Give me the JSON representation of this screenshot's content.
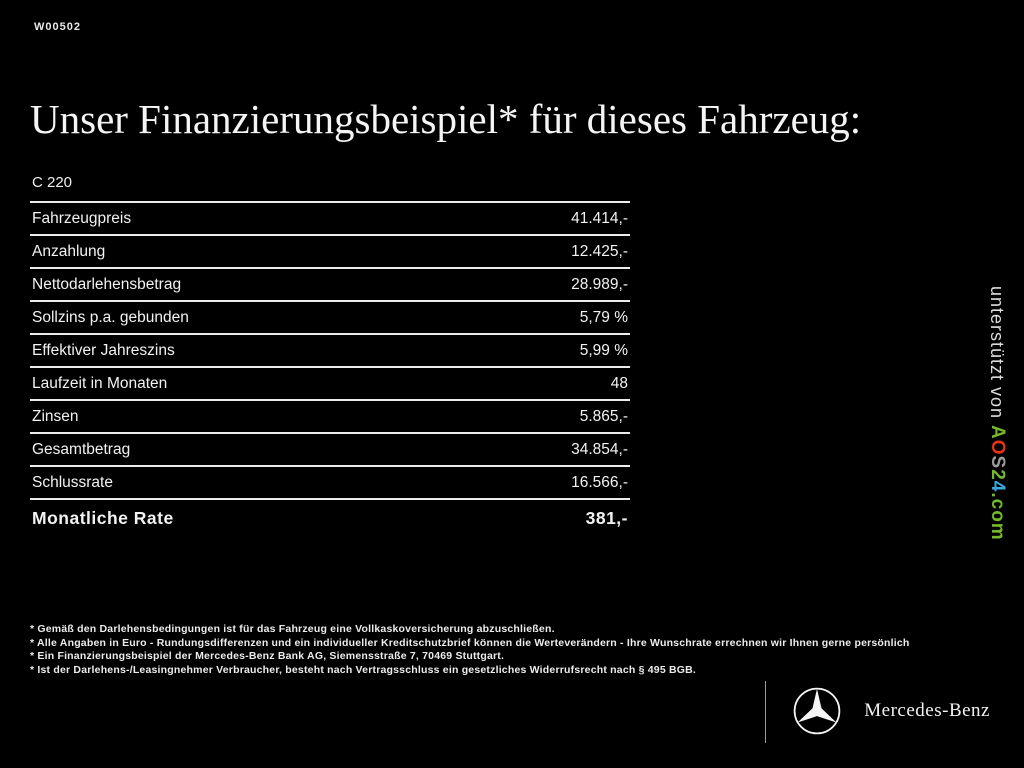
{
  "header": {
    "code": "W00502",
    "title": "Unser Finanzierungsbeispiel* für dieses Fahrzeug:"
  },
  "finance_table": {
    "model": "C 220",
    "rows": [
      {
        "label": "Fahrzeugpreis",
        "value": "41.414,-",
        "bold": false
      },
      {
        "label": "Anzahlung",
        "value": "12.425,-",
        "bold": false
      },
      {
        "label": "Nettodarlehensbetrag",
        "value": "28.989,-",
        "bold": false
      },
      {
        "label": "Sollzins p.a. gebunden",
        "value": "5,79 %",
        "bold": false
      },
      {
        "label": "Effektiver Jahreszins",
        "value": "5,99 %",
        "bold": false
      },
      {
        "label": "Laufzeit in Monaten",
        "value": "48",
        "bold": false
      },
      {
        "label": "Zinsen",
        "value": "5.865,-",
        "bold": false
      },
      {
        "label": "Gesamtbetrag",
        "value": "34.854,-",
        "bold": false
      },
      {
        "label": "Schlussrate",
        "value": "16.566,-",
        "bold": false
      },
      {
        "label": "Monatliche Rate",
        "value": "381,-",
        "bold": true
      }
    ]
  },
  "watermark": {
    "prefix": "unterstützt von ",
    "brand_letters": [
      {
        "char": "A",
        "color": "#76b82a"
      },
      {
        "char": "O",
        "color": "#e63312"
      },
      {
        "char": "S",
        "color": "#9d9d9c"
      },
      {
        "char": "2",
        "color": "#76b82a"
      },
      {
        "char": "4",
        "color": "#36a9e1"
      },
      {
        "char": ".com",
        "color": "#76b82a"
      }
    ]
  },
  "footnotes": [
    "* Gemäß den Darlehensbedingungen ist für das Fahrzeug eine Vollkaskoversicherung abzuschließen.",
    "* Alle Angaben in Euro - Rundungsdifferenzen und ein individueller Kreditschutzbrief können die Werteverändern - Ihre Wunschrate errechnen wir Ihnen gerne persönlich",
    "* Ein Finanzierungsbeispiel der Mercedes-Benz Bank AG, Siemensstraße 7, 70469 Stuttgart.",
    "* Ist der Darlehens-/Leasingnehmer Verbraucher, besteht nach Vertragsschluss ein gesetzliches Widerrufsrecht nach § 495 BGB."
  ],
  "brand_footer": {
    "name": "Mercedes-Benz"
  }
}
